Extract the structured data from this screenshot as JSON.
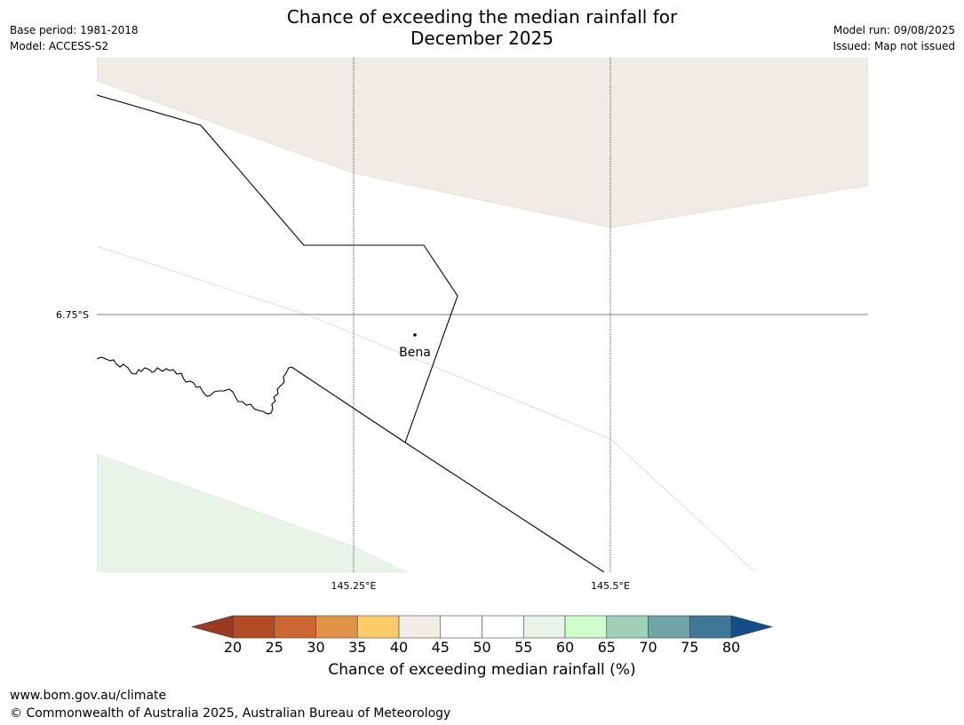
{
  "title_line1": "Chance of exceeding the median rainfall for",
  "title_line2": "December 2025",
  "meta_left": {
    "base_period": "Base period: 1981-2018",
    "model": "Model: ACCESS-S2"
  },
  "meta_right": {
    "model_run": "Model run: 09/08/2025",
    "issued": "Issued: Map not issued"
  },
  "map": {
    "lat_label": "6.75°S",
    "lon_labels": [
      "145.25°E",
      "145.5°E"
    ],
    "place_name": "Bena",
    "region_colors": {
      "north_band": "#f0ebe5",
      "southwest_band": "#e8f4e8",
      "background": "#ffffff"
    }
  },
  "colorbar": {
    "label": "Chance of exceeding median rainfall (%)",
    "ticks": [
      "20",
      "25",
      "30",
      "35",
      "40",
      "45",
      "50",
      "55",
      "60",
      "65",
      "70",
      "75",
      "80"
    ],
    "low_extend_color": "#9a3a22",
    "high_extend_color": "#144d8a",
    "colors": [
      "#b34a26",
      "#cc6633",
      "#e09448",
      "#fdcc66",
      "#f2ece6",
      "#ffffff",
      "#ffffff",
      "#e8f4e8",
      "#ccffcc",
      "#9ed0b8",
      "#6fa5a5",
      "#3f7797"
    ]
  },
  "footer": {
    "url": "www.bom.gov.au/climate",
    "copyright": "© Commonwealth of Australia 2025, Australian Bureau of Meteorology"
  }
}
